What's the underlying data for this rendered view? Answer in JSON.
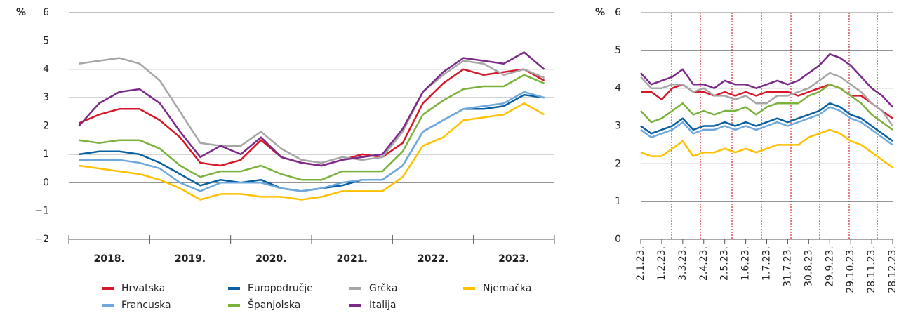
{
  "chart_data": [
    {
      "type": "line",
      "y_label": "%",
      "categories": [
        null,
        "2018.",
        null,
        null,
        null,
        "2019.",
        null,
        null,
        null,
        "2020.",
        null,
        null,
        null,
        "2021.",
        null,
        null,
        null,
        "2022.",
        null,
        null,
        null,
        "2023.",
        null,
        null
      ],
      "ylim": [
        -2,
        6
      ],
      "yticks": [
        {
          "value": -2,
          "label": "−2"
        },
        {
          "value": -1,
          "label": "−1"
        },
        0,
        1,
        2,
        3,
        4,
        5,
        6
      ],
      "grid": true,
      "series": [
        {
          "name": "Hrvatska",
          "color": "#d7182a",
          "values": [
            2.1,
            2.4,
            2.6,
            2.6,
            2.2,
            1.6,
            0.7,
            0.6,
            0.8,
            1.5,
            0.9,
            0.7,
            0.6,
            0.8,
            1.0,
            0.9,
            1.4,
            2.8,
            3.5,
            4.0,
            3.8,
            3.9,
            4.0,
            3.6
          ]
        },
        {
          "name": "Europodručje",
          "color": "#0a5fa0",
          "values": [
            1.0,
            1.1,
            1.1,
            1.0,
            0.7,
            0.3,
            -0.1,
            0.1,
            0.0,
            0.1,
            -0.2,
            -0.3,
            -0.2,
            -0.1,
            0.1,
            0.1,
            0.6,
            1.8,
            2.2,
            2.6,
            2.6,
            2.7,
            3.1,
            3.0
          ]
        },
        {
          "name": "Grčka",
          "color": "#a6a6a6",
          "values": [
            4.2,
            4.3,
            4.4,
            4.2,
            3.6,
            2.5,
            1.4,
            1.3,
            1.3,
            1.8,
            1.2,
            0.8,
            0.7,
            0.9,
            0.8,
            0.9,
            1.8,
            3.2,
            3.8,
            4.3,
            4.2,
            3.8,
            4.0,
            3.7
          ]
        },
        {
          "name": "Njemačka",
          "color": "#ffc000",
          "values": [
            0.6,
            0.5,
            0.4,
            0.3,
            0.1,
            -0.2,
            -0.6,
            -0.4,
            -0.4,
            -0.5,
            -0.5,
            -0.6,
            -0.5,
            -0.3,
            -0.3,
            -0.3,
            0.2,
            1.3,
            1.6,
            2.2,
            2.3,
            2.4,
            2.8,
            2.4
          ]
        },
        {
          "name": "Francuska",
          "color": "#6fa8dc",
          "values": [
            0.8,
            0.8,
            0.8,
            0.7,
            0.5,
            0.0,
            -0.3,
            0.0,
            0.0,
            0.0,
            -0.2,
            -0.3,
            -0.2,
            0.0,
            0.1,
            0.1,
            0.6,
            1.8,
            2.2,
            2.6,
            2.7,
            2.8,
            3.2,
            3.0
          ]
        },
        {
          "name": "Španjolska",
          "color": "#7ab23c",
          "values": [
            1.5,
            1.4,
            1.5,
            1.5,
            1.2,
            0.6,
            0.2,
            0.4,
            0.4,
            0.6,
            0.3,
            0.1,
            0.1,
            0.4,
            0.4,
            0.4,
            1.1,
            2.4,
            2.9,
            3.3,
            3.4,
            3.4,
            3.8,
            3.5
          ]
        },
        {
          "name": "Italija",
          "color": "#7b2a8a",
          "values": [
            2.0,
            2.8,
            3.2,
            3.3,
            2.8,
            1.8,
            0.9,
            1.3,
            1.0,
            1.6,
            0.9,
            0.7,
            0.6,
            0.8,
            0.9,
            1.0,
            1.9,
            3.2,
            3.9,
            4.4,
            4.3,
            4.2,
            4.6,
            4.0
          ]
        }
      ]
    },
    {
      "type": "line",
      "y_label": "%",
      "categories": [
        "2.1.23.",
        null,
        "1.2.23.",
        null,
        "3.3.23.",
        null,
        "2.4.23.",
        null,
        "2.5.23.",
        null,
        "1.6.23.",
        null,
        "1.7.23.",
        null,
        "31.7.23.",
        null,
        "30.8.23.",
        null,
        "29.9.23.",
        null,
        "29.10.23.",
        null,
        "28.11.23.",
        null,
        "28.12.23."
      ],
      "ylim": [
        0,
        6
      ],
      "yticks": [
        0,
        1,
        2,
        3,
        4,
        5,
        6
      ],
      "grid": true,
      "series": [
        {
          "color": "#d7182a",
          "values": [
            3.9,
            3.9,
            3.7,
            4.0,
            4.1,
            3.9,
            3.9,
            3.8,
            3.9,
            3.8,
            3.9,
            3.8,
            3.9,
            3.9,
            3.9,
            3.8,
            3.9,
            4.0,
            4.1,
            4.0,
            3.8,
            3.8,
            3.6,
            3.4,
            3.2
          ]
        },
        {
          "color": "#0a5fa0",
          "values": [
            3.0,
            2.8,
            2.9,
            3.0,
            3.2,
            2.9,
            3.0,
            3.0,
            3.1,
            3.0,
            3.1,
            3.0,
            3.1,
            3.2,
            3.1,
            3.2,
            3.3,
            3.4,
            3.6,
            3.5,
            3.3,
            3.2,
            3.0,
            2.8,
            2.6
          ]
        },
        {
          "color": "#a6a6a6",
          "values": [
            4.3,
            4.0,
            4.0,
            4.1,
            4.1,
            3.9,
            4.0,
            3.8,
            3.8,
            3.7,
            3.8,
            3.6,
            3.6,
            3.8,
            3.8,
            3.9,
            4.0,
            4.2,
            4.4,
            4.3,
            4.1,
            3.9,
            3.6,
            3.4,
            3.0
          ]
        },
        {
          "color": "#ffc000",
          "values": [
            2.3,
            2.2,
            2.2,
            2.4,
            2.6,
            2.2,
            2.3,
            2.3,
            2.4,
            2.3,
            2.4,
            2.3,
            2.4,
            2.5,
            2.5,
            2.5,
            2.7,
            2.8,
            2.9,
            2.8,
            2.6,
            2.5,
            2.3,
            2.1,
            1.9
          ]
        },
        {
          "color": "#6fa8dc",
          "values": [
            2.9,
            2.7,
            2.8,
            2.9,
            3.1,
            2.8,
            2.9,
            2.9,
            3.0,
            2.9,
            3.0,
            2.9,
            3.0,
            3.1,
            3.0,
            3.1,
            3.2,
            3.3,
            3.5,
            3.4,
            3.2,
            3.1,
            2.9,
            2.7,
            2.5
          ]
        },
        {
          "color": "#7ab23c",
          "values": [
            3.4,
            3.1,
            3.2,
            3.4,
            3.6,
            3.3,
            3.4,
            3.3,
            3.4,
            3.4,
            3.5,
            3.3,
            3.5,
            3.6,
            3.6,
            3.6,
            3.8,
            3.9,
            4.1,
            4.0,
            3.8,
            3.6,
            3.3,
            3.1,
            2.9
          ]
        },
        {
          "color": "#7b2a8a",
          "values": [
            4.4,
            4.1,
            4.2,
            4.3,
            4.5,
            4.1,
            4.1,
            4.0,
            4.2,
            4.1,
            4.1,
            4.0,
            4.1,
            4.2,
            4.1,
            4.2,
            4.4,
            4.6,
            4.9,
            4.8,
            4.6,
            4.3,
            4.0,
            3.8,
            3.5
          ]
        }
      ]
    }
  ]
}
